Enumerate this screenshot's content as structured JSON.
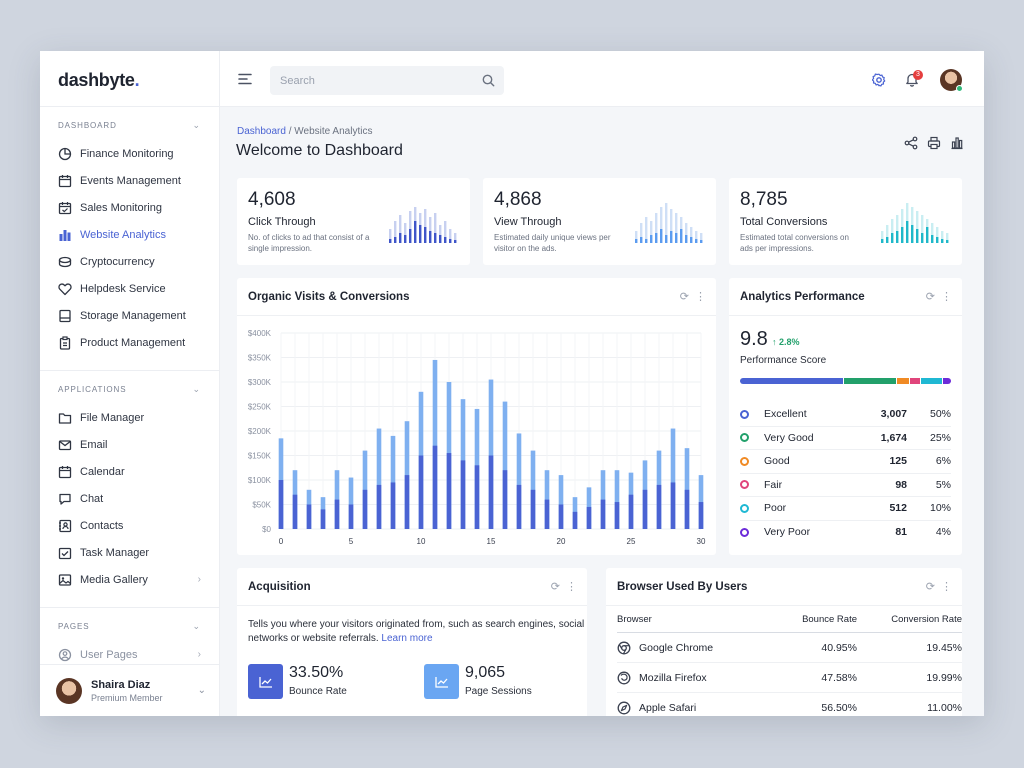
{
  "brand": {
    "name": "dashbyte",
    "dot": "."
  },
  "sidebar": {
    "sections": [
      {
        "label": "DASHBOARD",
        "items": [
          {
            "label": "Finance Monitoring",
            "icon": "pie-chart-icon"
          },
          {
            "label": "Events Management",
            "icon": "calendar-icon"
          },
          {
            "label": "Sales Monitoring",
            "icon": "calendar-check-icon"
          },
          {
            "label": "Website Analytics",
            "icon": "bar-chart-icon",
            "active": true
          },
          {
            "label": "Cryptocurrency",
            "icon": "coins-icon"
          },
          {
            "label": "Helpdesk Service",
            "icon": "heart-icon"
          },
          {
            "label": "Storage Management",
            "icon": "storage-icon"
          },
          {
            "label": "Product Management",
            "icon": "clipboard-icon"
          }
        ]
      },
      {
        "label": "APPLICATIONS",
        "items": [
          {
            "label": "File Manager",
            "icon": "folder-icon"
          },
          {
            "label": "Email",
            "icon": "mail-icon"
          },
          {
            "label": "Calendar",
            "icon": "calendar-icon"
          },
          {
            "label": "Chat",
            "icon": "chat-icon"
          },
          {
            "label": "Contacts",
            "icon": "contacts-icon"
          },
          {
            "label": "Task Manager",
            "icon": "task-icon"
          },
          {
            "label": "Media Gallery",
            "icon": "image-icon",
            "arrow": true
          }
        ]
      },
      {
        "label": "PAGES",
        "items": [
          {
            "label": "User Pages",
            "icon": "user-circle-icon",
            "arrow": true
          }
        ]
      }
    ],
    "user": {
      "name": "Shaira Diaz",
      "role": "Premium Member"
    }
  },
  "header": {
    "search_placeholder": "Search",
    "notification_count": "3"
  },
  "page": {
    "breadcrumb_root": "Dashboard",
    "breadcrumb_sep": "/",
    "breadcrumb_current": "Website Analytics",
    "title": "Welcome to Dashboard"
  },
  "kpis": [
    {
      "value": "4,608",
      "label": "Click Through",
      "desc": "No. of clicks to ad that consist of a single impression.",
      "color": "#3f55c9",
      "light": "#c7d0f0"
    },
    {
      "value": "4,868",
      "label": "View Through",
      "desc": "Estimated daily unique views per visitor on the ads.",
      "color": "#5b9cf0",
      "light": "#cfdff6"
    },
    {
      "value": "8,785",
      "label": "Total Conversions",
      "desc": "Estimated total conversions on ads per impressions.",
      "color": "#1fb8c9",
      "light": "#c9eef2"
    }
  ],
  "visits": {
    "title": "Organic Visits & Conversions",
    "chart_data": {
      "type": "bar",
      "x": [
        0,
        1,
        2,
        3,
        4,
        5,
        6,
        7,
        8,
        9,
        10,
        11,
        12,
        13,
        14,
        15,
        16,
        17,
        18,
        19,
        20,
        21,
        22,
        23,
        24,
        25,
        26,
        27,
        28,
        29,
        30
      ],
      "series": [
        {
          "name": "Conversions",
          "values": [
            100,
            70,
            50,
            40,
            60,
            50,
            80,
            90,
            95,
            110,
            150,
            170,
            155,
            140,
            130,
            150,
            120,
            90,
            80,
            60,
            50,
            35,
            45,
            60,
            55,
            70,
            80,
            90,
            95,
            80,
            55
          ]
        },
        {
          "name": "Organic Visits",
          "values": [
            185,
            120,
            80,
            65,
            120,
            105,
            160,
            205,
            190,
            220,
            280,
            345,
            300,
            265,
            245,
            305,
            260,
            195,
            160,
            120,
            110,
            65,
            85,
            120,
            120,
            115,
            140,
            160,
            205,
            165,
            110
          ]
        }
      ],
      "ylabels": [
        "$0",
        "$50K",
        "$100K",
        "$150K",
        "$200K",
        "$250K",
        "$300K",
        "$350K",
        "$400K"
      ],
      "ylim": [
        0,
        400
      ],
      "xticks": [
        "0",
        "5",
        "10",
        "15",
        "20",
        "25",
        "30"
      ],
      "grid": true
    }
  },
  "analytics": {
    "title": "Analytics Performance",
    "score": "9.8",
    "delta": "↑ 2.8%",
    "score_label": "Performance Score",
    "rows": [
      {
        "label": "Excellent",
        "count": "3,007",
        "pct": "50%",
        "color": "#4a63d3",
        "share": 50
      },
      {
        "label": "Very Good",
        "count": "1,674",
        "pct": "25%",
        "color": "#22a06b",
        "share": 25
      },
      {
        "label": "Good",
        "count": "125",
        "pct": "6%",
        "color": "#f08a24",
        "share": 6
      },
      {
        "label": "Fair",
        "count": "98",
        "pct": "5%",
        "color": "#e0457b",
        "share": 5
      },
      {
        "label": "Poor",
        "count": "512",
        "pct": "10%",
        "color": "#1fb8d3",
        "share": 10
      },
      {
        "label": "Very Poor",
        "count": "81",
        "pct": "4%",
        "color": "#6c2bd9",
        "share": 4
      }
    ]
  },
  "acquisition": {
    "title": "Acquisition",
    "desc": "Tells you where your visitors originated from, such as search engines, social networks or website referrals.",
    "link": "Learn more",
    "stats": [
      {
        "value": "33.50%",
        "label": "Bounce Rate",
        "color": "#4a63d3"
      },
      {
        "value": "9,065",
        "label": "Page Sessions",
        "color": "#6aa6f2"
      }
    ]
  },
  "browsers": {
    "title": "Browser Used By Users",
    "headers": [
      "Browser",
      "Bounce Rate",
      "Conversion Rate"
    ],
    "rows": [
      {
        "name": "Google Chrome",
        "bounce": "40.95%",
        "conv": "19.45%",
        "icon": "chrome-icon"
      },
      {
        "name": "Mozilla Firefox",
        "bounce": "47.58%",
        "conv": "19.99%",
        "icon": "firefox-icon"
      },
      {
        "name": "Apple Safari",
        "bounce": "56.50%",
        "conv": "11.00%",
        "icon": "safari-icon"
      }
    ]
  }
}
